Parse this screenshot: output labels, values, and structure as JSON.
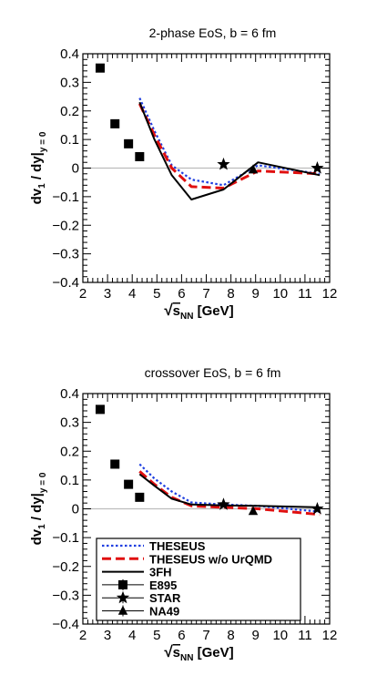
{
  "chart_data": [
    {
      "type": "line",
      "title": "2-phase EoS, b = 6 fm",
      "xlabel_prefix": "√",
      "xlabel_var": "s",
      "xlabel_sub": "NN",
      "xlabel_unit": " [GeV]",
      "ylabel_main": "dv",
      "ylabel_sub1": "1",
      "ylabel_mid": " / dy|",
      "ylabel_sub2": "y = 0",
      "xlim": [
        2,
        12
      ],
      "ylim": [
        -0.4,
        0.4
      ],
      "xticks": [
        "2",
        "3",
        "4",
        "5",
        "6",
        "7",
        "8",
        "9",
        "10",
        "11",
        "12"
      ],
      "yticks": [
        "0.4",
        "0.3",
        "0.2",
        "0.1",
        "0",
        "−0.1",
        "−0.2",
        "−0.3",
        "−0.4"
      ],
      "series": [
        {
          "name": "THESEUS",
          "style": "dotted",
          "color": "#1f3fe0",
          "x": [
            4.3,
            4.9,
            5.6,
            6.4,
            7.7,
            9.1,
            11.6
          ],
          "y": [
            0.245,
            0.13,
            0.01,
            -0.04,
            -0.06,
            0.01,
            -0.02
          ]
        },
        {
          "name": "THESEUS w/o UrQMD",
          "style": "dashed",
          "color": "#e01010",
          "x": [
            4.3,
            4.9,
            5.6,
            6.4,
            7.7,
            9.1,
            11.6
          ],
          "y": [
            0.225,
            0.115,
            0.0,
            -0.065,
            -0.07,
            -0.01,
            -0.02
          ]
        },
        {
          "name": "3FH",
          "style": "solid",
          "color": "#000000",
          "x": [
            4.3,
            4.9,
            5.6,
            6.4,
            7.7,
            9.1,
            11.6
          ],
          "y": [
            0.23,
            0.1,
            -0.025,
            -0.11,
            -0.075,
            0.02,
            -0.025
          ]
        },
        {
          "name": "E895",
          "style": "square",
          "color": "#000000",
          "x": [
            2.7,
            3.3,
            3.85,
            4.3
          ],
          "y": [
            0.35,
            0.155,
            0.085,
            0.04
          ]
        },
        {
          "name": "STAR",
          "style": "star",
          "color": "#000000",
          "x": [
            7.7,
            11.5
          ],
          "y": [
            0.013,
            0.0
          ]
        },
        {
          "name": "NA49",
          "style": "triangle",
          "color": "#000000",
          "x": [
            8.9
          ],
          "y": [
            -0.005
          ]
        }
      ]
    },
    {
      "type": "line",
      "title": "crossover EoS, b = 6 fm",
      "xlabel_prefix": "√",
      "xlabel_var": "s",
      "xlabel_sub": "NN",
      "xlabel_unit": " [GeV]",
      "ylabel_main": "dv",
      "ylabel_sub1": "1",
      "ylabel_mid": " / dy|",
      "ylabel_sub2": "y = 0",
      "xlim": [
        2,
        12
      ],
      "ylim": [
        -0.4,
        0.4
      ],
      "xticks": [
        "2",
        "3",
        "4",
        "5",
        "6",
        "7",
        "8",
        "9",
        "10",
        "11",
        "12"
      ],
      "yticks": [
        "0.4",
        "0.3",
        "0.2",
        "0.1",
        "0",
        "−0.1",
        "−0.2",
        "−0.3",
        "−0.4"
      ],
      "legend": {
        "placement": "bottom-left",
        "entries": [
          "THESEUS",
          "THESEUS w/o UrQMD",
          "3FH",
          "E895",
          "STAR",
          "NA49"
        ]
      },
      "series": [
        {
          "name": "THESEUS",
          "style": "dotted",
          "color": "#1f3fe0",
          "x": [
            4.3,
            4.9,
            5.6,
            6.4,
            7.7,
            9.1,
            11.6
          ],
          "y": [
            0.155,
            0.105,
            0.06,
            0.022,
            0.015,
            0.01,
            -0.01
          ]
        },
        {
          "name": "THESEUS w/o UrQMD",
          "style": "dashed",
          "color": "#e01010",
          "x": [
            4.3,
            4.9,
            5.6,
            6.4,
            7.7,
            9.1,
            11.6
          ],
          "y": [
            0.13,
            0.085,
            0.04,
            0.01,
            0.005,
            0.0,
            -0.02
          ]
        },
        {
          "name": "3FH",
          "style": "solid",
          "color": "#000000",
          "x": [
            4.3,
            4.9,
            5.6,
            6.4,
            7.7,
            9.1,
            11.6
          ],
          "y": [
            0.12,
            0.08,
            0.035,
            0.015,
            0.012,
            0.01,
            0.005
          ]
        },
        {
          "name": "E895",
          "style": "square",
          "color": "#000000",
          "x": [
            2.7,
            3.3,
            3.85,
            4.3
          ],
          "y": [
            0.345,
            0.155,
            0.085,
            0.04
          ]
        },
        {
          "name": "STAR",
          "style": "star",
          "color": "#000000",
          "x": [
            7.7,
            11.5
          ],
          "y": [
            0.015,
            0.0
          ]
        },
        {
          "name": "NA49",
          "style": "triangle",
          "color": "#000000",
          "x": [
            8.9
          ],
          "y": [
            -0.008
          ]
        }
      ]
    }
  ]
}
